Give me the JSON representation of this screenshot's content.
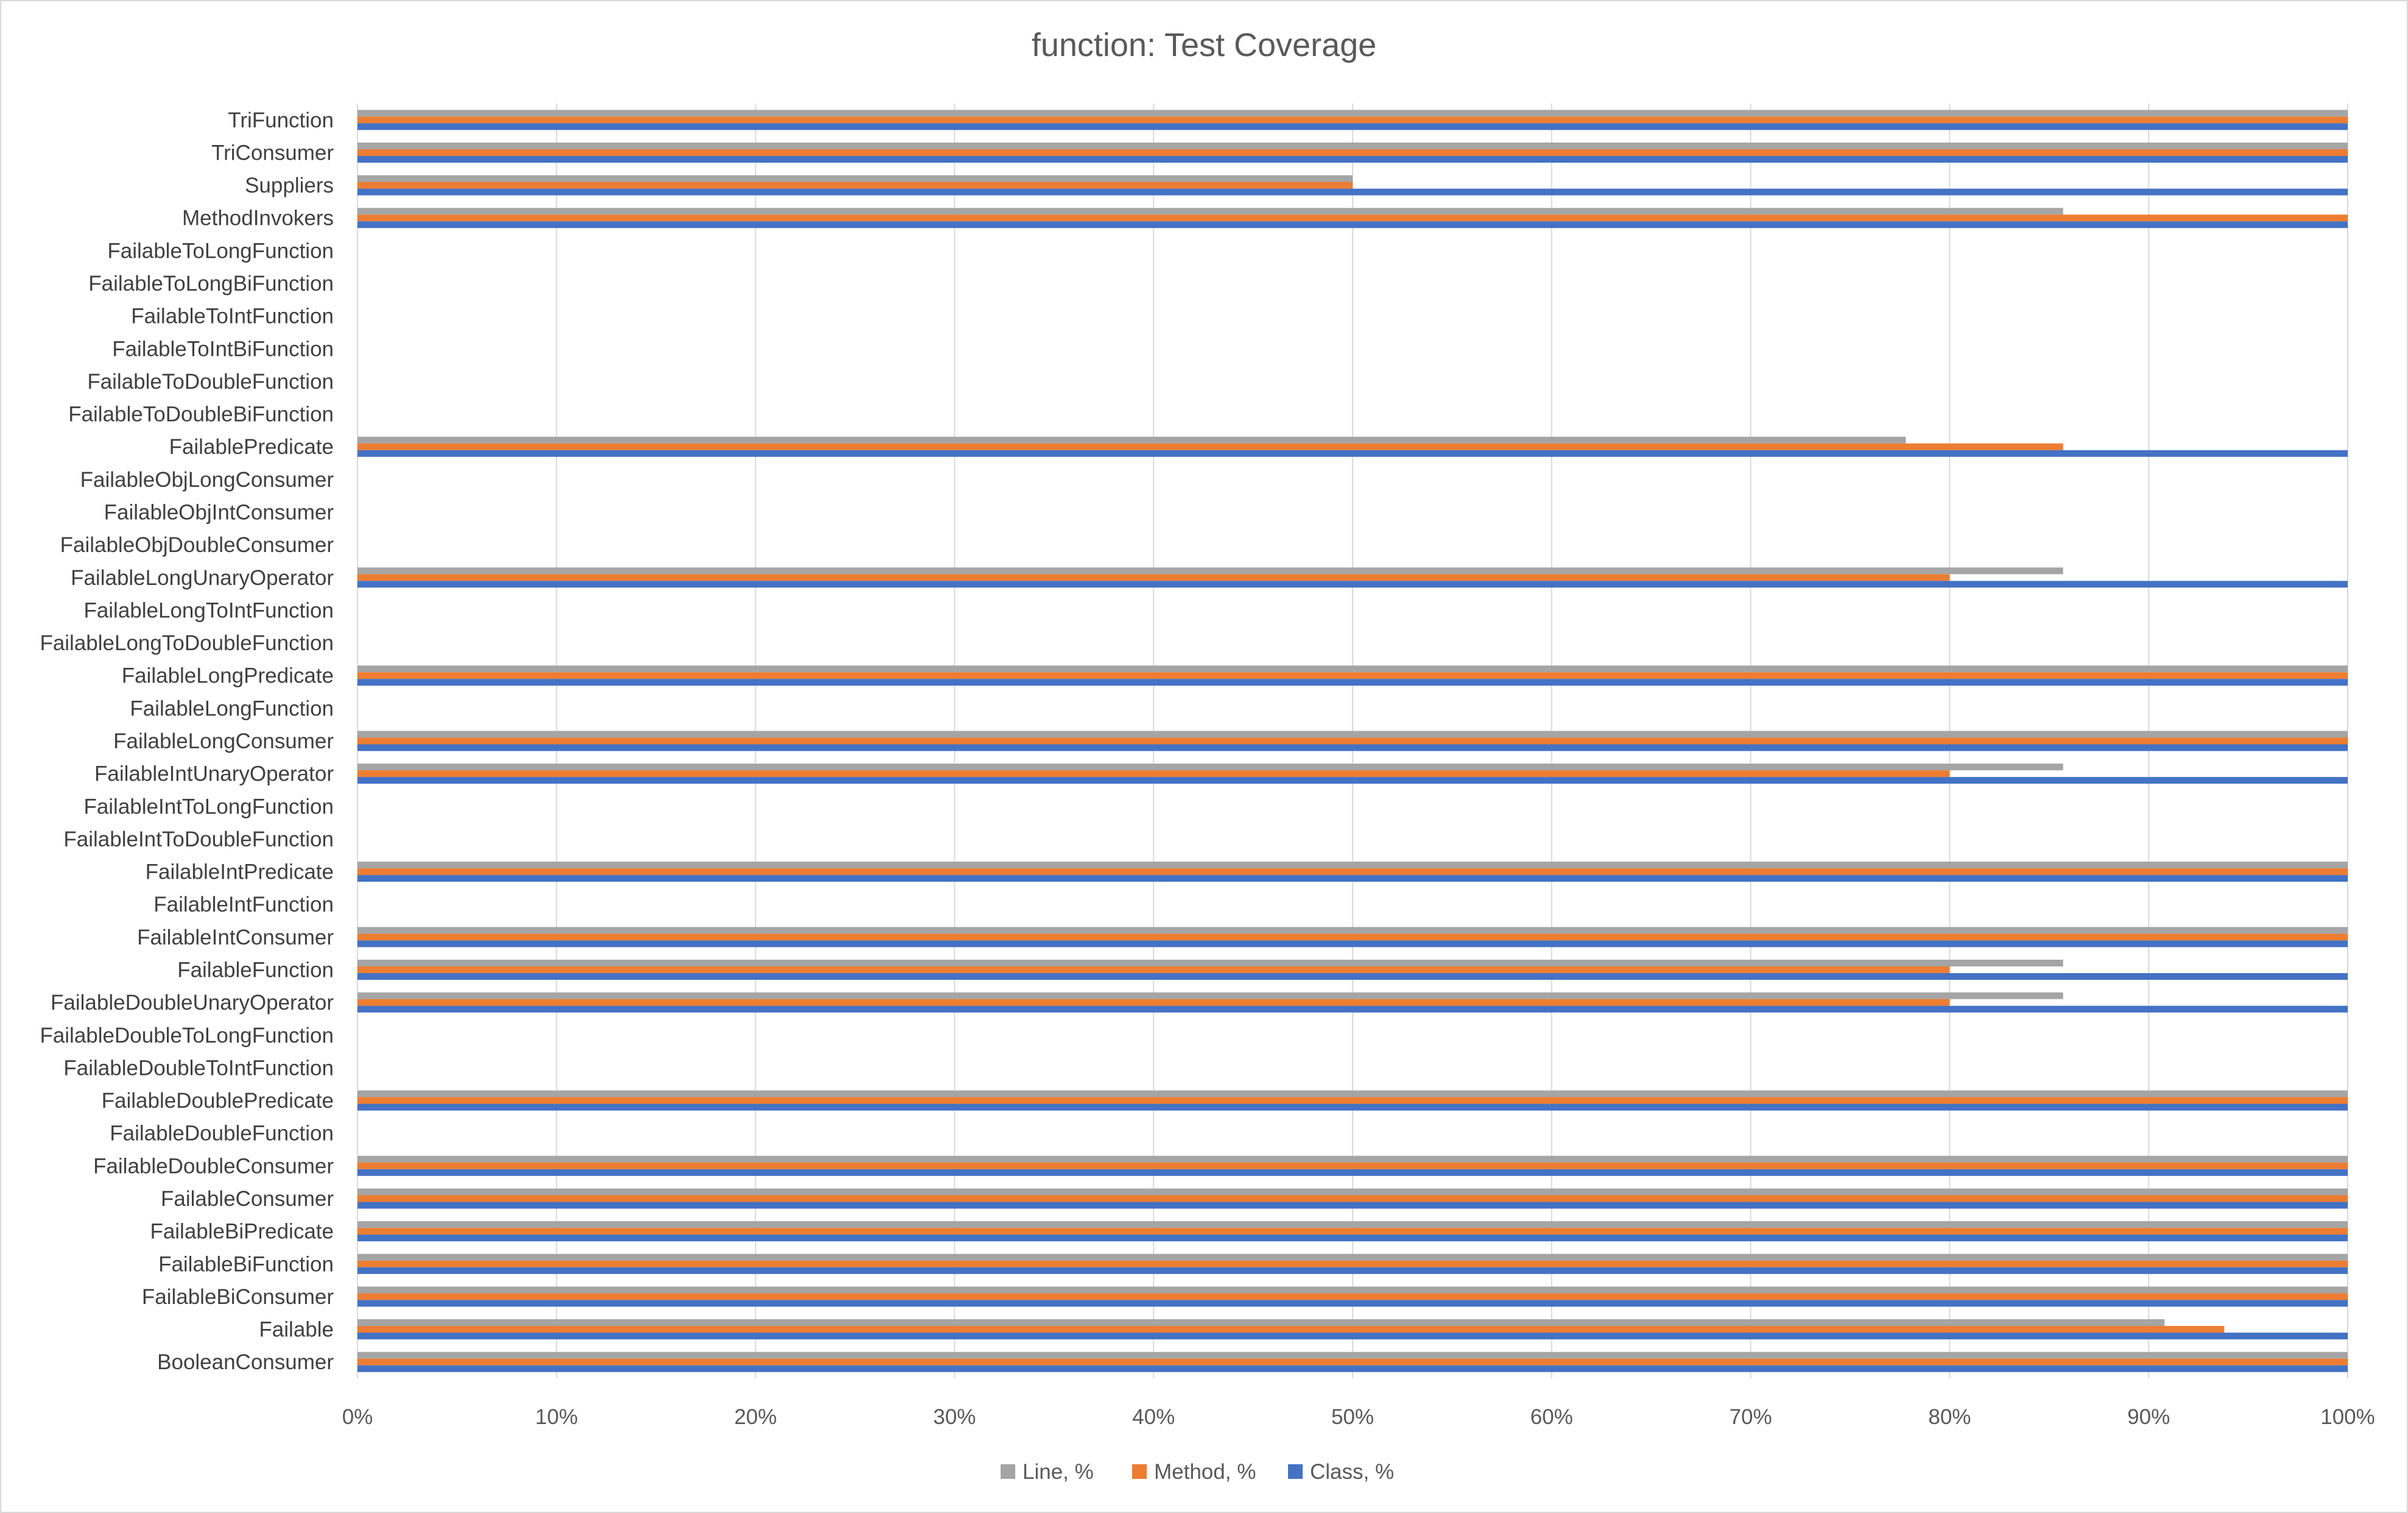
{
  "chart_data": {
    "type": "bar",
    "orientation": "horizontal",
    "title": "function: Test Coverage",
    "xlabel": "",
    "ylabel": "",
    "xlim": [
      0,
      100
    ],
    "grid": true,
    "legend_position": "bottom",
    "tick_labels": [
      "0%",
      "10%",
      "20%",
      "30%",
      "40%",
      "50%",
      "60%",
      "70%",
      "80%",
      "90%",
      "100%"
    ],
    "categories": [
      "TriFunction",
      "TriConsumer",
      "Suppliers",
      "MethodInvokers",
      "FailableToLongFunction",
      "FailableToLongBiFunction",
      "FailableToIntFunction",
      "FailableToIntBiFunction",
      "FailableToDoubleFunction",
      "FailableToDoubleBiFunction",
      "FailablePredicate",
      "FailableObjLongConsumer",
      "FailableObjIntConsumer",
      "FailableObjDoubleConsumer",
      "FailableLongUnaryOperator",
      "FailableLongToIntFunction",
      "FailableLongToDoubleFunction",
      "FailableLongPredicate",
      "FailableLongFunction",
      "FailableLongConsumer",
      "FailableIntUnaryOperator",
      "FailableIntToLongFunction",
      "FailableIntToDoubleFunction",
      "FailableIntPredicate",
      "FailableIntFunction",
      "FailableIntConsumer",
      "FailableFunction",
      "FailableDoubleUnaryOperator",
      "FailableDoubleToLongFunction",
      "FailableDoubleToIntFunction",
      "FailableDoublePredicate",
      "FailableDoubleFunction",
      "FailableDoubleConsumer",
      "FailableConsumer",
      "FailableBiPredicate",
      "FailableBiFunction",
      "FailableBiConsumer",
      "Failable",
      "BooleanConsumer"
    ],
    "series": [
      {
        "name": "Line, %",
        "color": "#a5a5a5",
        "values": [
          100,
          100,
          50,
          85.7,
          0,
          0,
          0,
          0,
          0,
          0,
          77.8,
          0,
          0,
          0,
          85.7,
          0,
          0,
          100,
          0,
          100,
          85.7,
          0,
          0,
          100,
          0,
          100,
          85.7,
          85.7,
          0,
          0,
          100,
          0,
          100,
          100,
          100,
          100,
          100,
          90.8,
          100
        ]
      },
      {
        "name": "Method, %",
        "color": "#ed7d31",
        "values": [
          100,
          100,
          50,
          100,
          0,
          0,
          0,
          0,
          0,
          0,
          85.7,
          0,
          0,
          0,
          80,
          0,
          0,
          100,
          0,
          100,
          80,
          0,
          0,
          100,
          0,
          100,
          80,
          80,
          0,
          0,
          100,
          0,
          100,
          100,
          100,
          100,
          100,
          93.8,
          100
        ]
      },
      {
        "name": "Class, %",
        "color": "#4472c4",
        "values": [
          100,
          100,
          100,
          100,
          0,
          0,
          0,
          0,
          0,
          0,
          100,
          0,
          0,
          0,
          100,
          0,
          0,
          100,
          0,
          100,
          100,
          0,
          0,
          100,
          0,
          100,
          100,
          100,
          0,
          0,
          100,
          0,
          100,
          100,
          100,
          100,
          100,
          100,
          100
        ]
      }
    ]
  }
}
